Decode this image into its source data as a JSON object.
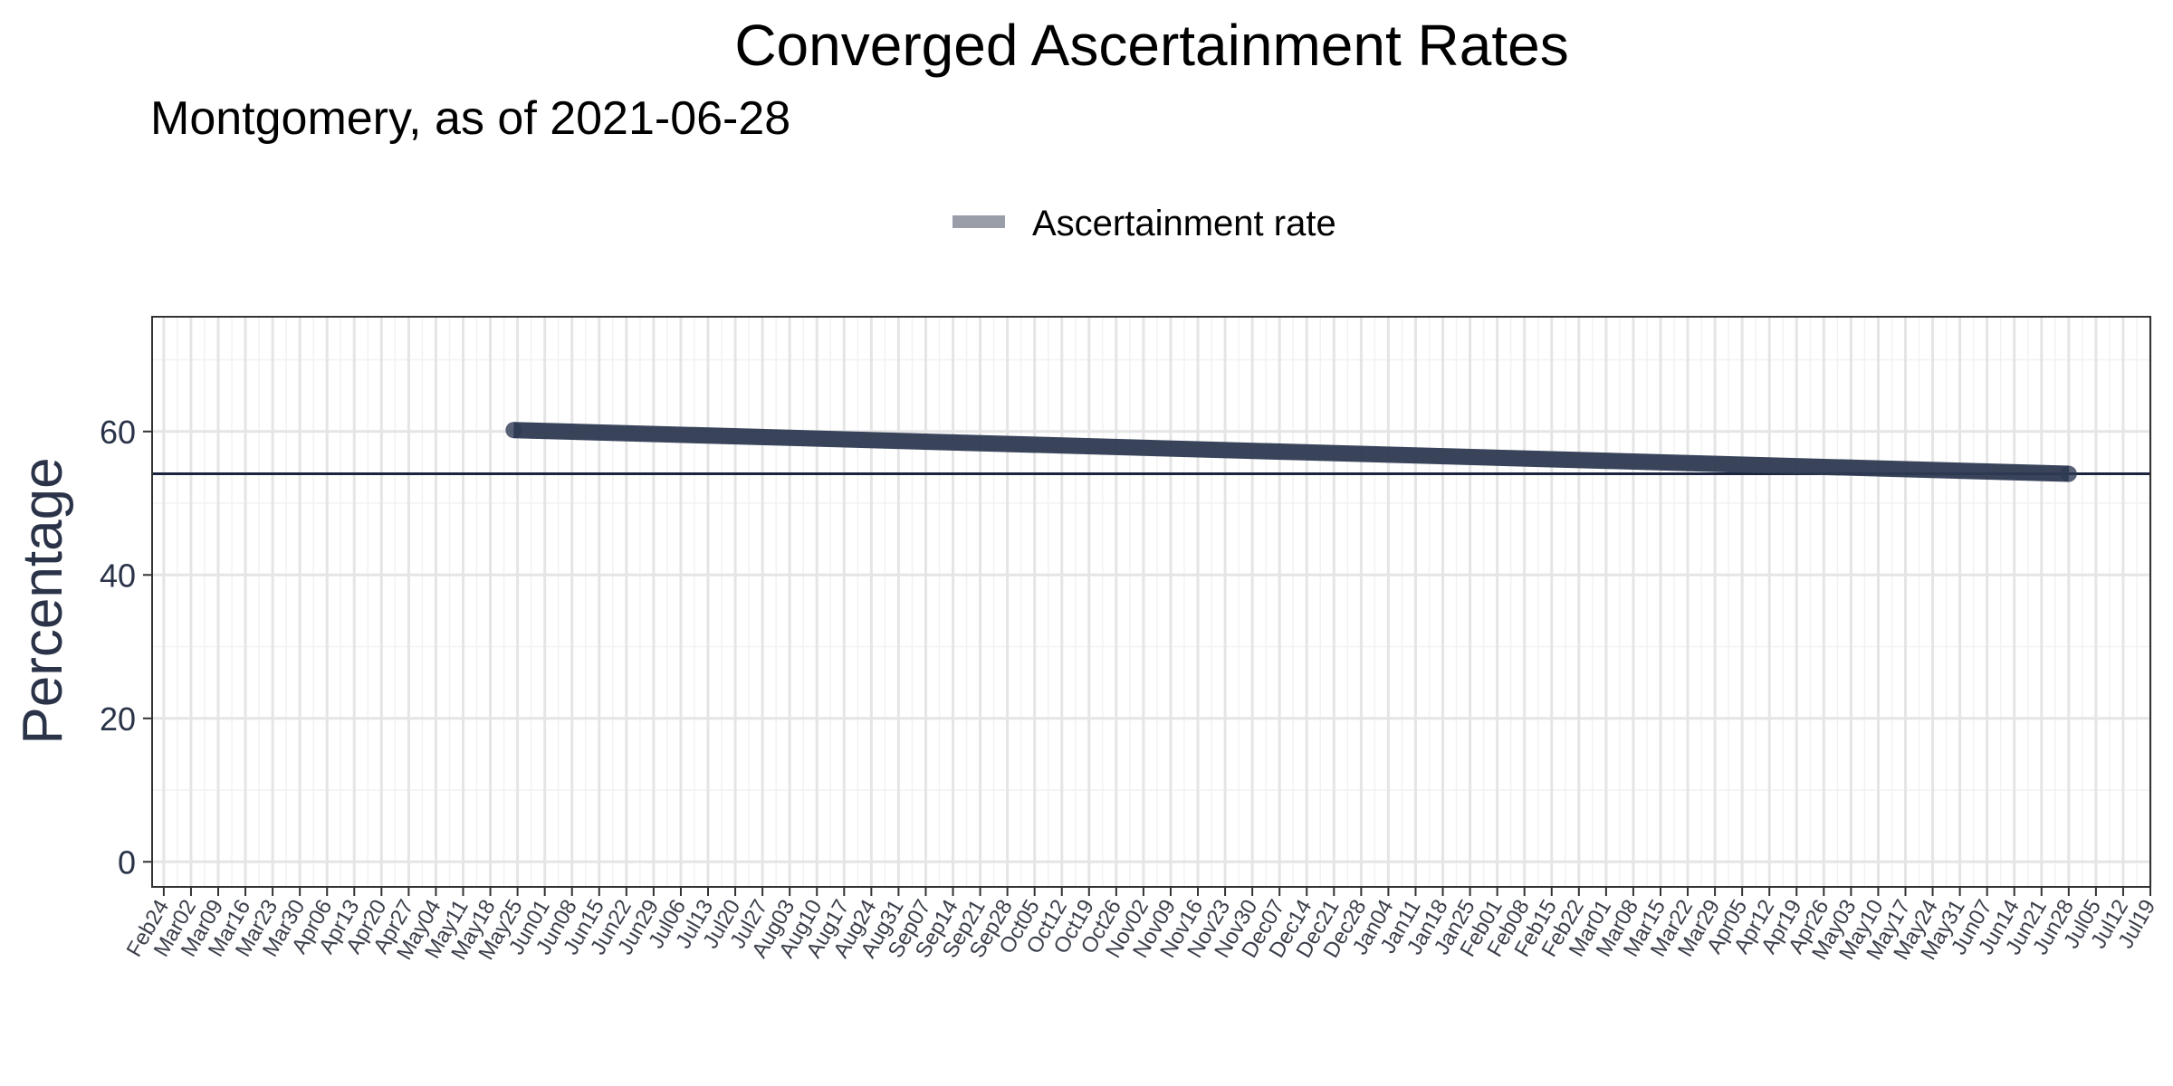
{
  "chart_data": {
    "type": "line",
    "title": "Converged Ascertainment Rates",
    "subtitle": "Montgomery, as of 2021-06-28",
    "ylabel": "Percentage",
    "xlabel": "",
    "ylim": [
      -3.5,
      76
    ],
    "yticks": [
      0,
      20,
      40,
      60
    ],
    "x_tick_dates": [
      "2020-02-24",
      "2020-03-02",
      "2020-03-09",
      "2020-03-16",
      "2020-03-23",
      "2020-03-30",
      "2020-04-06",
      "2020-04-13",
      "2020-04-20",
      "2020-04-27",
      "2020-05-04",
      "2020-05-11",
      "2020-05-18",
      "2020-05-25",
      "2020-06-01",
      "2020-06-08",
      "2020-06-15",
      "2020-06-22",
      "2020-06-29",
      "2020-07-06",
      "2020-07-13",
      "2020-07-20",
      "2020-07-27",
      "2020-08-03",
      "2020-08-10",
      "2020-08-17",
      "2020-08-24",
      "2020-08-31",
      "2020-09-07",
      "2020-09-14",
      "2020-09-21",
      "2020-09-28",
      "2020-10-05",
      "2020-10-12",
      "2020-10-19",
      "2020-10-26",
      "2020-11-02",
      "2020-11-09",
      "2020-11-16",
      "2020-11-23",
      "2020-11-30",
      "2020-12-07",
      "2020-12-14",
      "2020-12-21",
      "2020-12-28",
      "2021-01-04",
      "2021-01-11",
      "2021-01-18",
      "2021-01-25",
      "2021-02-01",
      "2021-02-08",
      "2021-02-15",
      "2021-02-22",
      "2021-03-01",
      "2021-03-08",
      "2021-03-15",
      "2021-03-22",
      "2021-03-29",
      "2021-04-05",
      "2021-04-12",
      "2021-04-19",
      "2021-04-26",
      "2021-05-03",
      "2021-05-10",
      "2021-05-17",
      "2021-05-24",
      "2021-05-31",
      "2021-06-07",
      "2021-06-14",
      "2021-06-21",
      "2021-06-28",
      "2021-07-05",
      "2021-07-12",
      "2021-07-19"
    ],
    "x_tick_labels": [
      "Feb24",
      "Mar02",
      "Mar09",
      "Mar16",
      "Mar23",
      "Mar30",
      "Apr06",
      "Apr13",
      "Apr20",
      "Apr27",
      "May04",
      "May11",
      "May18",
      "May25",
      "Jun01",
      "Jun08",
      "Jun15",
      "Jun22",
      "Jun29",
      "Jul06",
      "Jul13",
      "Jul20",
      "Jul27",
      "Aug03",
      "Aug10",
      "Aug17",
      "Aug24",
      "Aug31",
      "Sep07",
      "Sep14",
      "Sep21",
      "Sep28",
      "Oct05",
      "Oct12",
      "Oct19",
      "Oct26",
      "Nov02",
      "Nov09",
      "Nov16",
      "Nov23",
      "Nov30",
      "Dec07",
      "Dec14",
      "Dec21",
      "Dec28",
      "Jan04",
      "Jan11",
      "Jan18",
      "Jan25",
      "Feb01",
      "Feb08",
      "Feb15",
      "Feb22",
      "Mar01",
      "Mar08",
      "Mar15",
      "Mar22",
      "Mar29",
      "Apr05",
      "Apr12",
      "Apr19",
      "Apr26",
      "May03",
      "May10",
      "May17",
      "May24",
      "May31",
      "Jun07",
      "Jun14",
      "Jun21",
      "Jun28",
      "Jul05",
      "Jul12",
      "Jul19"
    ],
    "xlim": [
      "2020-02-21",
      "2021-07-19"
    ],
    "series": [
      {
        "name": "Ascertainment rate",
        "color": "#2e3a52",
        "x": [
          "2020-05-24",
          "2021-06-28"
        ],
        "y": [
          60.2,
          54.1
        ]
      }
    ],
    "reference_line": {
      "y": 54.1,
      "color": "#1c2540"
    },
    "legend": {
      "position": "top",
      "entries": [
        "Ascertainment rate"
      ],
      "swatch_color": "#9a9ea8"
    },
    "grid": true
  }
}
